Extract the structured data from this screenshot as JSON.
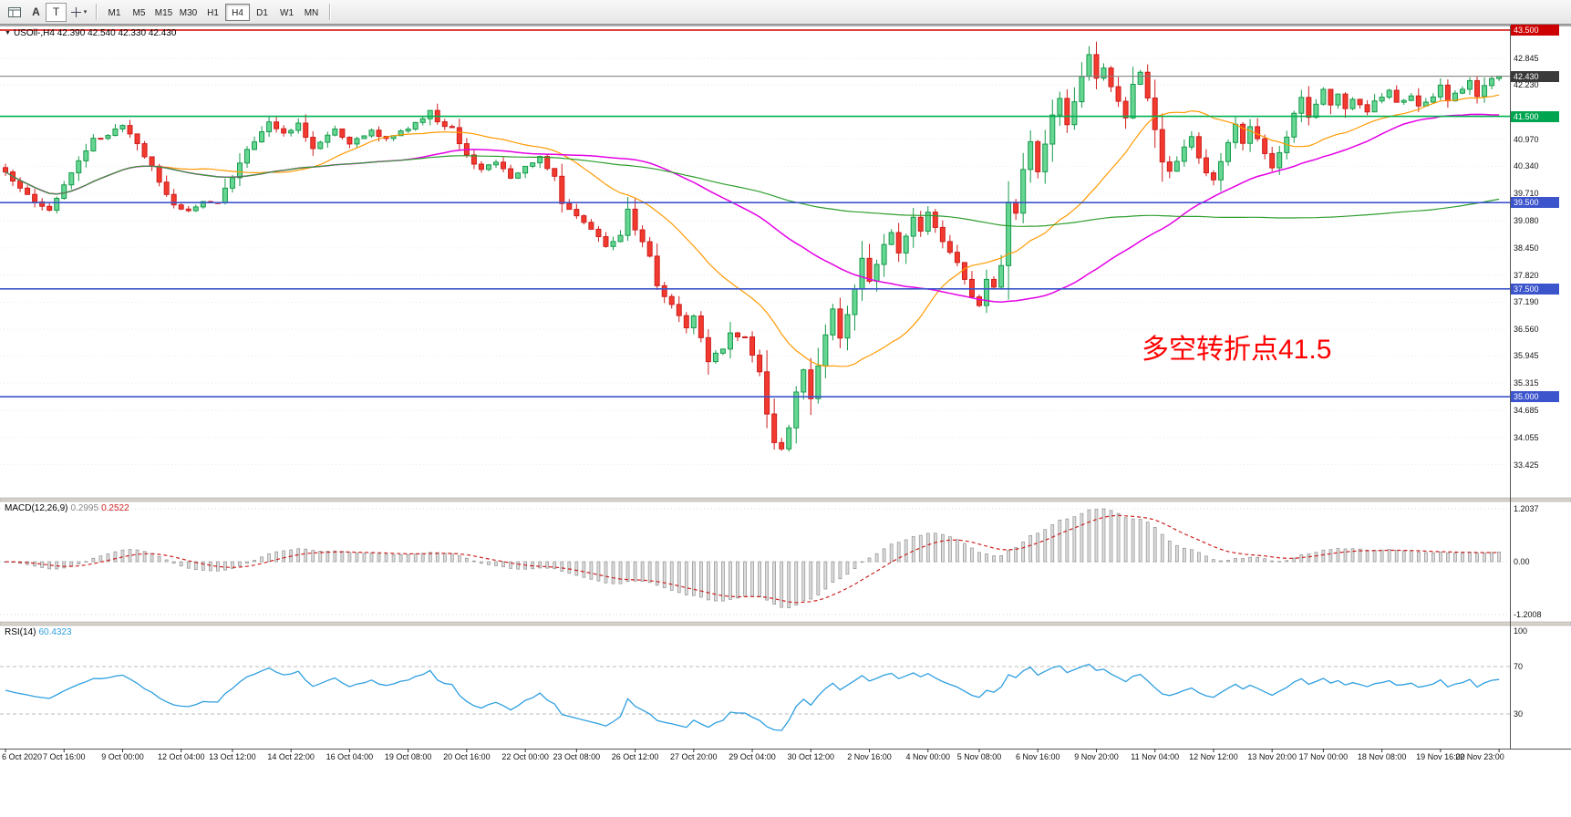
{
  "window": {
    "app": "MetaTrader chart window",
    "background": "#ffffff"
  },
  "toolbar": {
    "char_button": "A",
    "text_button": "T",
    "timeframes": [
      "M1",
      "M5",
      "M15",
      "M30",
      "H1",
      "H4",
      "D1",
      "W1",
      "MN"
    ],
    "active_timeframe": "H4"
  },
  "chart": {
    "symbol_label": "USOil-,H4 42.390 42.540 42.330 42.430",
    "annotation": {
      "text": "多空转折点41.5",
      "color": "#ff0000"
    },
    "price_axis": {
      "labels": [
        "42.845",
        "42.230",
        "40.970",
        "40.340",
        "39.710",
        "39.080",
        "38.450",
        "37.820",
        "37.190",
        "36.560",
        "35.945",
        "35.315",
        "34.685",
        "34.055",
        "33.425"
      ],
      "badges": [
        {
          "value": "43.500",
          "color": "#cc0000"
        },
        {
          "value": "42.430",
          "color": "#3a3a3a"
        },
        {
          "value": "41.500",
          "color": "#00a550"
        },
        {
          "value": "39.500",
          "color": "#3c55cc"
        },
        {
          "value": "37.500",
          "color": "#3c55cc"
        },
        {
          "value": "35.000",
          "color": "#3c55cc"
        }
      ]
    },
    "levels": [
      {
        "price": 43.5,
        "color": "#d40000",
        "width": 1.4
      },
      {
        "price": 42.43,
        "color": "#7a7a7a",
        "width": 1.0
      },
      {
        "price": 41.5,
        "color": "#00b050",
        "width": 1.6
      },
      {
        "price": 39.5,
        "color": "#3c55cc",
        "width": 1.6
      },
      {
        "price": 37.5,
        "color": "#3c55cc",
        "width": 1.6
      },
      {
        "price": 35.0,
        "color": "#3c55cc",
        "width": 1.6
      }
    ],
    "time_axis": [
      "6 Oct 2020",
      "7 Oct 16:00",
      "9 Oct 00:00",
      "12 Oct 04:00",
      "13 Oct 12:00",
      "14 Oct 22:00",
      "16 Oct 04:00",
      "19 Oct 08:00",
      "20 Oct 16:00",
      "22 Oct 00:00",
      "23 Oct 08:00",
      "26 Oct 12:00",
      "27 Oct 20:00",
      "29 Oct 04:00",
      "30 Oct 12:00",
      "2 Nov 16:00",
      "4 Nov 00:00",
      "5 Nov 08:00",
      "6 Nov 16:00",
      "9 Nov 20:00",
      "11 Nov 04:00",
      "12 Nov 12:00",
      "13 Nov 20:00",
      "17 Nov 00:00",
      "18 Nov 08:00",
      "19 Nov 16:00",
      "22 Nov 23:00"
    ]
  },
  "macd": {
    "label": "MACD(12,26,9)",
    "value_main": "0.2995",
    "value_signal": "0.2522",
    "axis_labels": [
      "1.2037",
      "0.00",
      "-1.2008"
    ],
    "colors": {
      "histogram": "#9a9a9a",
      "signal": "#cc2222"
    }
  },
  "rsi": {
    "label": "RSI(14)",
    "value": "60.4323",
    "axis_labels": [
      "100",
      "70",
      "30"
    ],
    "levels": [
      70,
      30
    ],
    "color": "#2f9fe0"
  },
  "chart_data": {
    "type": "candlestick",
    "symbol": "USOil-",
    "timeframe": "H4",
    "bars": 205,
    "last_ohlc": {
      "open": 42.39,
      "high": 42.54,
      "low": 42.33,
      "close": 42.43
    },
    "axis_price_range": [
      33.2,
      43.5
    ],
    "horizontal_levels": [
      43.5,
      41.5,
      39.5,
      37.5,
      35.0
    ],
    "bull_color": "#169a4a",
    "bear_color": "#cf1d1d",
    "moving_averages": [
      {
        "period": 21,
        "color": "#ff9900"
      },
      {
        "period": 55,
        "color": "#e400e4"
      },
      {
        "period": 120,
        "color": "#2e9e2e"
      }
    ],
    "close_path_anchors": [
      [
        0,
        40.2
      ],
      [
        2,
        39.8
      ],
      [
        4,
        39.55
      ],
      [
        6,
        39.35
      ],
      [
        8,
        39.9
      ],
      [
        10,
        40.5
      ],
      [
        12,
        40.95
      ],
      [
        14,
        41.1
      ],
      [
        16,
        41.25
      ],
      [
        18,
        40.9
      ],
      [
        20,
        40.3
      ],
      [
        23,
        39.45
      ],
      [
        25,
        39.3
      ],
      [
        27,
        39.55
      ],
      [
        29,
        39.5
      ],
      [
        31,
        40.1
      ],
      [
        33,
        40.7
      ],
      [
        36,
        41.35
      ],
      [
        38,
        41.1
      ],
      [
        40,
        41.3
      ],
      [
        42,
        40.75
      ],
      [
        45,
        41.2
      ],
      [
        47,
        40.9
      ],
      [
        50,
        41.15
      ],
      [
        52,
        41.0
      ],
      [
        55,
        41.2
      ],
      [
        57,
        41.45
      ],
      [
        58,
        41.6
      ],
      [
        59,
        41.35
      ],
      [
        61,
        41.2
      ],
      [
        63,
        40.6
      ],
      [
        65,
        40.25
      ],
      [
        67,
        40.45
      ],
      [
        69,
        40.05
      ],
      [
        71,
        40.3
      ],
      [
        73,
        40.55
      ],
      [
        75,
        40.1
      ],
      [
        76,
        39.5
      ],
      [
        78,
        39.15
      ],
      [
        80,
        38.85
      ],
      [
        82,
        38.5
      ],
      [
        84,
        38.75
      ],
      [
        85,
        39.35
      ],
      [
        86,
        38.9
      ],
      [
        88,
        38.3
      ],
      [
        89,
        37.6
      ],
      [
        91,
        37.1
      ],
      [
        93,
        36.6
      ],
      [
        94,
        36.85
      ],
      [
        96,
        35.85
      ],
      [
        98,
        36.1
      ],
      [
        99,
        36.45
      ],
      [
        101,
        36.35
      ],
      [
        102,
        35.95
      ],
      [
        103,
        35.6
      ],
      [
        104,
        34.6
      ],
      [
        105,
        33.9
      ],
      [
        106,
        33.75
      ],
      [
        107,
        34.3
      ],
      [
        108,
        35.1
      ],
      [
        109,
        35.6
      ],
      [
        110,
        34.95
      ],
      [
        112,
        36.45
      ],
      [
        113,
        37.0
      ],
      [
        114,
        36.35
      ],
      [
        116,
        37.5
      ],
      [
        117,
        38.25
      ],
      [
        118,
        37.65
      ],
      [
        120,
        38.55
      ],
      [
        121,
        38.85
      ],
      [
        122,
        38.35
      ],
      [
        124,
        39.15
      ],
      [
        125,
        38.8
      ],
      [
        126,
        39.3
      ],
      [
        128,
        38.6
      ],
      [
        130,
        38.1
      ],
      [
        132,
        37.35
      ],
      [
        133,
        37.15
      ],
      [
        134,
        37.75
      ],
      [
        135,
        37.55
      ],
      [
        136,
        38.0
      ],
      [
        137,
        39.55
      ],
      [
        138,
        39.3
      ],
      [
        139,
        40.3
      ],
      [
        140,
        40.95
      ],
      [
        141,
        40.25
      ],
      [
        143,
        41.5
      ],
      [
        144,
        41.95
      ],
      [
        145,
        41.35
      ],
      [
        147,
        42.4
      ],
      [
        148,
        42.95
      ],
      [
        149,
        42.35
      ],
      [
        150,
        42.6
      ],
      [
        152,
        41.85
      ],
      [
        153,
        41.45
      ],
      [
        154,
        42.2
      ],
      [
        155,
        42.5
      ],
      [
        156,
        41.95
      ],
      [
        157,
        41.2
      ],
      [
        158,
        40.45
      ],
      [
        159,
        40.2
      ],
      [
        161,
        40.8
      ],
      [
        162,
        41.0
      ],
      [
        163,
        40.5
      ],
      [
        164,
        40.2
      ],
      [
        165,
        40.0
      ],
      [
        167,
        40.85
      ],
      [
        168,
        41.3
      ],
      [
        169,
        40.85
      ],
      [
        170,
        41.3
      ],
      [
        172,
        40.6
      ],
      [
        173,
        40.3
      ],
      [
        175,
        41.0
      ],
      [
        176,
        41.6
      ],
      [
        177,
        41.9
      ],
      [
        178,
        41.5
      ],
      [
        180,
        42.1
      ],
      [
        181,
        41.8
      ],
      [
        182,
        42.0
      ],
      [
        183,
        41.7
      ],
      [
        184,
        41.9
      ],
      [
        186,
        41.6
      ],
      [
        187,
        41.85
      ],
      [
        189,
        42.1
      ],
      [
        190,
        41.8
      ],
      [
        192,
        42.0
      ],
      [
        193,
        41.7
      ],
      [
        195,
        41.95
      ],
      [
        196,
        42.2
      ],
      [
        197,
        41.9
      ],
      [
        199,
        42.15
      ],
      [
        200,
        42.3
      ],
      [
        201,
        42.0
      ],
      [
        202,
        42.2
      ],
      [
        203,
        42.35
      ],
      [
        204,
        42.43
      ]
    ],
    "indicators": {
      "macd": {
        "fast": 12,
        "slow": 26,
        "signal": 9,
        "last_main": 0.2995,
        "last_signal": 0.2522,
        "axis_max": 1.2037,
        "axis_min": -1.2008
      },
      "rsi": {
        "period": 14,
        "last": 60.4323,
        "levels": [
          70,
          30
        ]
      }
    }
  }
}
